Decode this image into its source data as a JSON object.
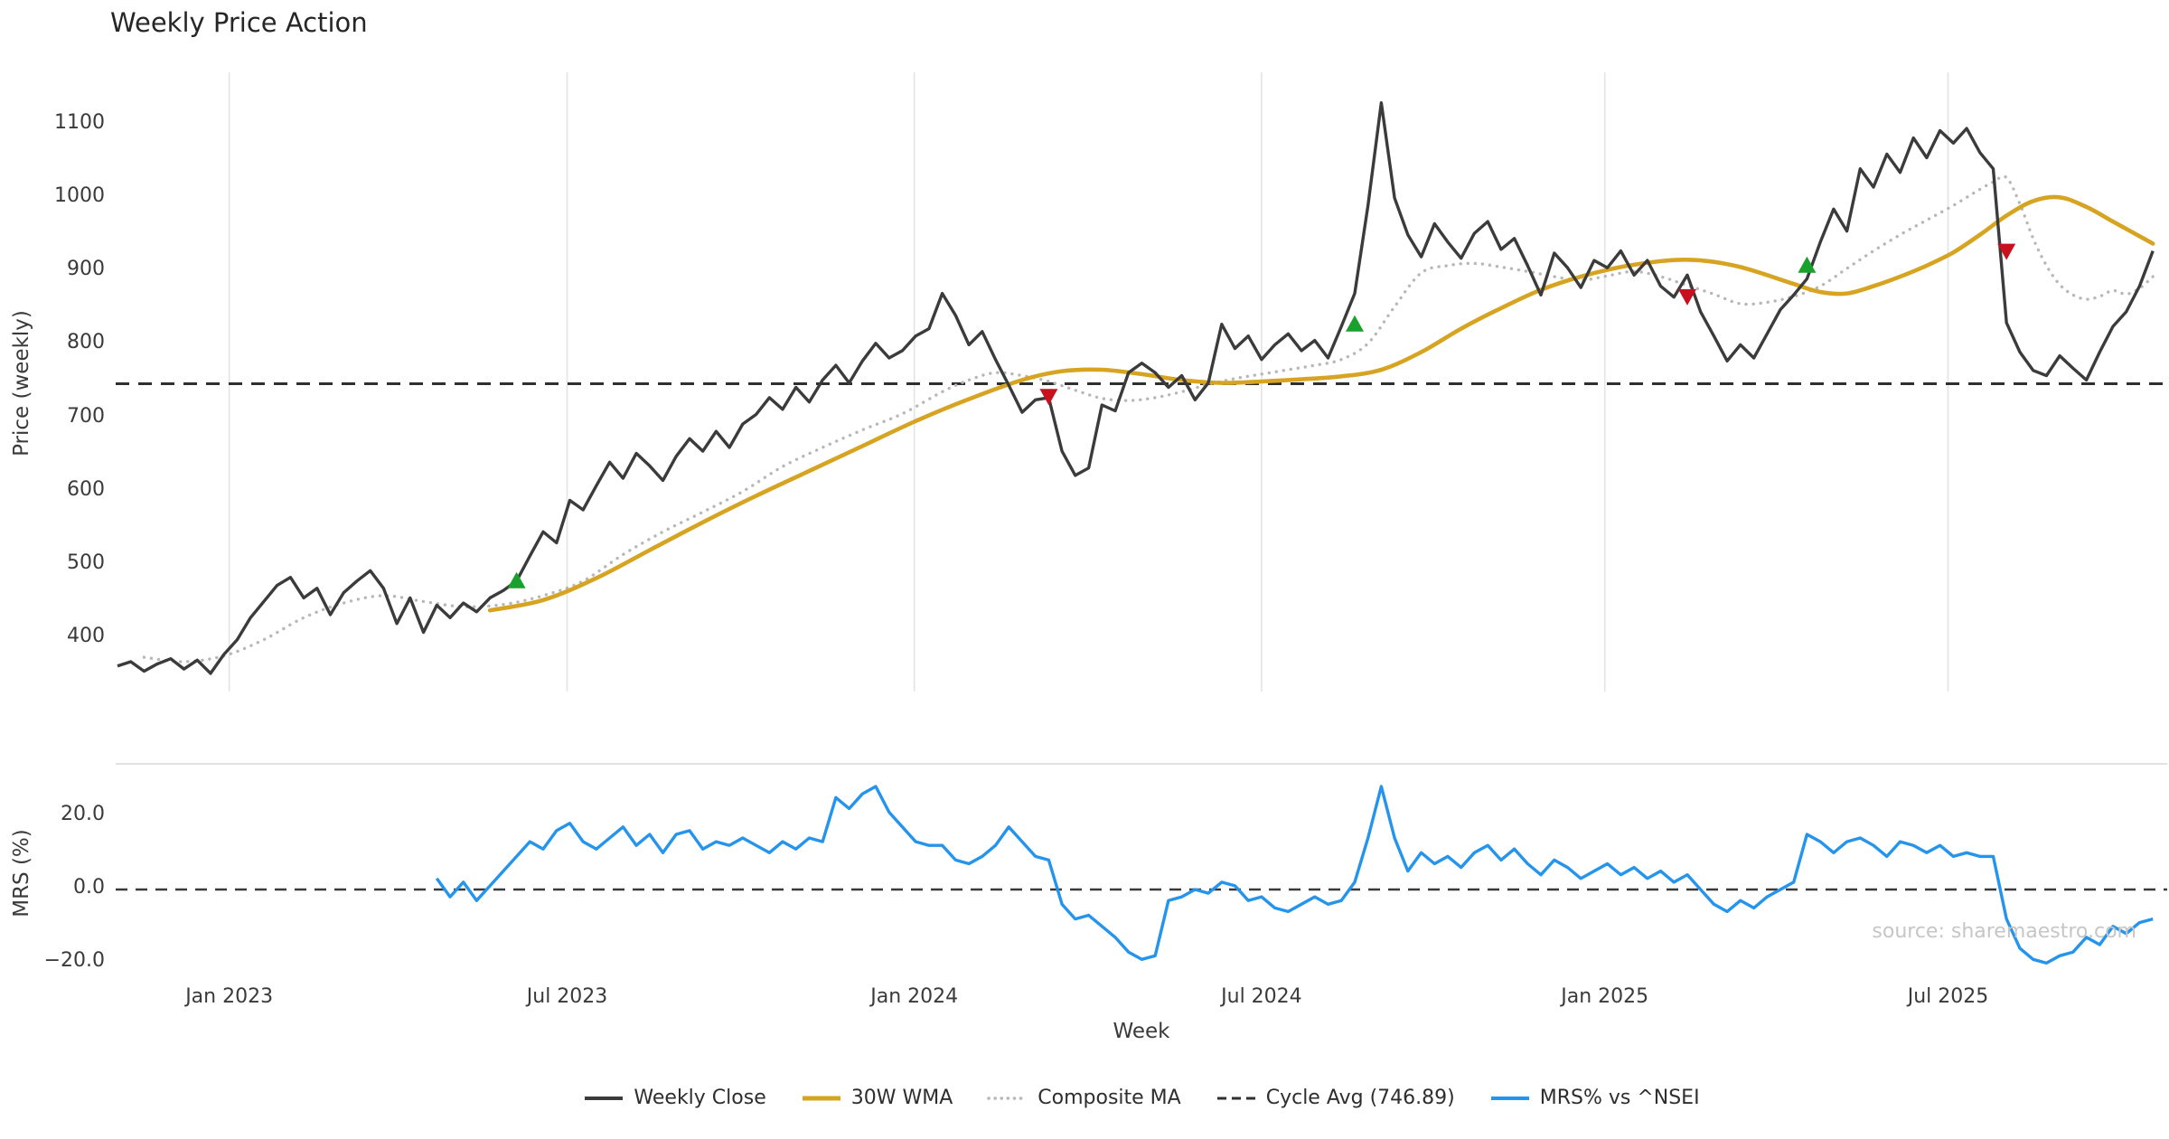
{
  "watermark": "source: sharemaestro.com",
  "colors": {
    "weekly_close": "#3b3b3b",
    "wma": "#D7A421",
    "composite": "#b8b8b8",
    "cycle_avg": "#2f2f2f",
    "mrs": "#2494EC",
    "buy": "#18A12C",
    "sell": "#C8101E",
    "gridline": "#e4e4e4"
  },
  "legend": [
    {
      "label": "Weekly Close",
      "color": "#3b3b3b",
      "width": 4
    },
    {
      "label": "30W WMA",
      "color": "#D7A421",
      "width": 5
    },
    {
      "label": "Composite MA",
      "color": "#b8b8b8",
      "width": 3.6,
      "dash": "0.1 7",
      "cap": "round"
    },
    {
      "label": "Cycle Avg (746.89)",
      "color": "#2f2f2f",
      "width": 3,
      "dash": "10 6"
    },
    {
      "label": "MRS% vs ^NSEI",
      "color": "#2494EC",
      "width": 4
    }
  ],
  "chart_data": [
    {
      "type": "line",
      "title": "Weekly Price Action",
      "xlabel": "",
      "ylabel": "Price (weekly)",
      "ylim": [
        340,
        1150
      ],
      "grid": "vertical-only",
      "cycle_avg": 746.89,
      "yticks": [
        {
          "value": 400,
          "label": "400"
        },
        {
          "value": 500,
          "label": "500"
        },
        {
          "value": 600,
          "label": "600"
        },
        {
          "value": 700,
          "label": "700"
        },
        {
          "value": 800,
          "label": "800"
        },
        {
          "value": 900,
          "label": "900"
        },
        {
          "value": 1000,
          "label": "1000"
        },
        {
          "value": 1100,
          "label": "1100"
        }
      ],
      "xticks": [
        {
          "week": 8.4,
          "label": "Jan 2023"
        },
        {
          "week": 33.8,
          "label": "Jul 2023"
        },
        {
          "week": 59.9,
          "label": "Jan 2024"
        },
        {
          "week": 86.0,
          "label": "Jul 2024"
        },
        {
          "week": 111.8,
          "label": "Jan 2025"
        },
        {
          "week": 137.6,
          "label": "Jul 2025"
        }
      ],
      "series": [
        {
          "name": "Weekly Close",
          "color": "#3b3b3b",
          "start_week": 0,
          "values": [
            362,
            368,
            355,
            365,
            372,
            358,
            370,
            352,
            378,
            398,
            428,
            450,
            472,
            483,
            455,
            468,
            432,
            462,
            478,
            492,
            468,
            420,
            455,
            408,
            445,
            428,
            448,
            436,
            455,
            465,
            478,
            512,
            545,
            530,
            588,
            575,
            608,
            640,
            618,
            652,
            635,
            615,
            648,
            672,
            655,
            682,
            660,
            692,
            705,
            728,
            712,
            742,
            722,
            752,
            772,
            748,
            778,
            802,
            782,
            792,
            812,
            822,
            870,
            840,
            800,
            818,
            780,
            745,
            708,
            725,
            728,
            655,
            622,
            632,
            718,
            710,
            762,
            775,
            762,
            742,
            758,
            725,
            748,
            828,
            795,
            812,
            780,
            800,
            815,
            792,
            806,
            782,
            825,
            870,
            990,
            1130,
            1000,
            950,
            920,
            965,
            940,
            918,
            952,
            968,
            930,
            945,
            908,
            868,
            925,
            905,
            878,
            915,
            905,
            928,
            895,
            915,
            880,
            865,
            895,
            845,
            812,
            778,
            800,
            782,
            815,
            848,
            868,
            890,
            940,
            985,
            955,
            1040,
            1015,
            1060,
            1035,
            1082,
            1055,
            1092,
            1075,
            1095,
            1062,
            1040,
            830,
            790,
            765,
            758,
            785,
            768,
            752,
            790,
            825,
            845,
            880,
            928
          ]
        },
        {
          "name": "30W WMA",
          "color": "#D7A421",
          "points": [
            [
              28,
              438
            ],
            [
              32,
              452
            ],
            [
              36,
              482
            ],
            [
              40,
              520
            ],
            [
              44,
              558
            ],
            [
              48,
              594
            ],
            [
              52,
              628
            ],
            [
              56,
              662
            ],
            [
              60,
              696
            ],
            [
              64,
              726
            ],
            [
              68,
              752
            ],
            [
              71,
              764
            ],
            [
              74,
              766
            ],
            [
              77,
              760
            ],
            [
              80,
              752
            ],
            [
              83,
              748
            ],
            [
              86,
              750
            ],
            [
              89,
              753
            ],
            [
              92,
              757
            ],
            [
              95,
              766
            ],
            [
              98,
              790
            ],
            [
              101,
              822
            ],
            [
              104,
              850
            ],
            [
              107,
              875
            ],
            [
              110,
              893
            ],
            [
              113,
              906
            ],
            [
              116,
              914
            ],
            [
              118,
              916
            ],
            [
              120,
              913
            ],
            [
              122,
              906
            ],
            [
              124,
              895
            ],
            [
              126,
              883
            ],
            [
              128,
              872
            ],
            [
              130,
              870
            ],
            [
              132,
              880
            ],
            [
              134,
              893
            ],
            [
              136,
              908
            ],
            [
              138,
              926
            ],
            [
              140,
              950
            ],
            [
              142,
              976
            ],
            [
              144,
              996
            ],
            [
              146,
              1001
            ],
            [
              148,
              988
            ],
            [
              150,
              968
            ],
            [
              152,
              948
            ],
            [
              153,
              938
            ]
          ]
        },
        {
          "name": "Composite MA",
          "color": "#b8b8b8",
          "style": "dotted",
          "points": [
            [
              2,
              374
            ],
            [
              5,
              368
            ],
            [
              8,
              376
            ],
            [
              11,
              398
            ],
            [
              14,
              428
            ],
            [
              17,
              448
            ],
            [
              20,
              458
            ],
            [
              23,
              450
            ],
            [
              26,
              443
            ],
            [
              29,
              446
            ],
            [
              32,
              458
            ],
            [
              35,
              478
            ],
            [
              38,
              514
            ],
            [
              41,
              545
            ],
            [
              44,
              572
            ],
            [
              47,
              600
            ],
            [
              50,
              634
            ],
            [
              53,
              660
            ],
            [
              56,
              684
            ],
            [
              59,
              706
            ],
            [
              62,
              736
            ],
            [
              64,
              752
            ],
            [
              66,
              762
            ],
            [
              68,
              758
            ],
            [
              70,
              750
            ],
            [
              72,
              738
            ],
            [
              74,
              727
            ],
            [
              76,
              724
            ],
            [
              78,
              728
            ],
            [
              80,
              736
            ],
            [
              82,
              746
            ],
            [
              84,
              754
            ],
            [
              86,
              760
            ],
            [
              88,
              766
            ],
            [
              90,
              772
            ],
            [
              92,
              780
            ],
            [
              94,
              802
            ],
            [
              96,
              852
            ],
            [
              98,
              898
            ],
            [
              100,
              908
            ],
            [
              102,
              911
            ],
            [
              104,
              906
            ],
            [
              106,
              900
            ],
            [
              108,
              893
            ],
            [
              110,
              888
            ],
            [
              112,
              894
            ],
            [
              114,
              900
            ],
            [
              116,
              893
            ],
            [
              118,
              881
            ],
            [
              120,
              869
            ],
            [
              122,
              856
            ],
            [
              124,
              858
            ],
            [
              126,
              866
            ],
            [
              128,
              880
            ],
            [
              130,
              904
            ],
            [
              132,
              928
            ],
            [
              134,
              950
            ],
            [
              136,
              970
            ],
            [
              138,
              990
            ],
            [
              140,
              1012
            ],
            [
              141,
              1022
            ],
            [
              142,
              1028
            ],
            [
              143,
              992
            ],
            [
              144,
              945
            ],
            [
              145,
              908
            ],
            [
              146,
              882
            ],
            [
              147,
              868
            ],
            [
              148,
              862
            ],
            [
              149,
              866
            ],
            [
              150,
              874
            ],
            [
              151,
              869
            ],
            [
              152,
              877
            ],
            [
              153,
              893
            ]
          ]
        }
      ],
      "signals": {
        "buy": [
          {
            "week": 30,
            "price": 478
          },
          {
            "week": 93,
            "price": 828
          },
          {
            "week": 127,
            "price": 908
          }
        ],
        "sell": [
          {
            "week": 70,
            "price": 730
          },
          {
            "week": 118,
            "price": 866
          },
          {
            "week": 142,
            "price": 928
          }
        ]
      }
    },
    {
      "type": "line",
      "title": "",
      "xlabel": "Week",
      "ylabel": "MRS (%)",
      "ylim": [
        -24,
        32
      ],
      "zero_line": 0,
      "yticks": [
        {
          "value": 20,
          "label": "20.0"
        },
        {
          "value": 0,
          "label": "0.0"
        },
        {
          "value": -20,
          "label": "−20.0"
        }
      ],
      "series": [
        {
          "name": "MRS% vs ^NSEI",
          "color": "#2494EC",
          "start_week": 24,
          "values": [
            3,
            -2,
            2,
            -3,
            1,
            5,
            9,
            13,
            11,
            16,
            18,
            13,
            11,
            14,
            17,
            12,
            15,
            10,
            15,
            16,
            11,
            13,
            12,
            14,
            12,
            10,
            13,
            11,
            14,
            13,
            25,
            22,
            26,
            28,
            21,
            17,
            13,
            12,
            12,
            8,
            7,
            9,
            12,
            17,
            13,
            9,
            8,
            -4,
            -8,
            -7,
            -10,
            -13,
            -17,
            -19,
            -18,
            -3,
            -2,
            0,
            -1,
            2,
            1,
            -3,
            -2,
            -5,
            -6,
            -4,
            -2,
            -4,
            -3,
            2,
            14,
            28,
            14,
            5,
            10,
            7,
            9,
            6,
            10,
            12,
            8,
            11,
            7,
            4,
            8,
            6,
            3,
            5,
            7,
            4,
            6,
            3,
            5,
            2,
            4,
            0,
            -4,
            -6,
            -3,
            -5,
            -2,
            0,
            2,
            15,
            13,
            10,
            13,
            14,
            12,
            9,
            13,
            12,
            10,
            12,
            9,
            10,
            9,
            9,
            -8,
            -16,
            -19,
            -20,
            -18,
            -17,
            -13,
            -15,
            -10,
            -12,
            -9,
            -8
          ]
        }
      ]
    }
  ]
}
